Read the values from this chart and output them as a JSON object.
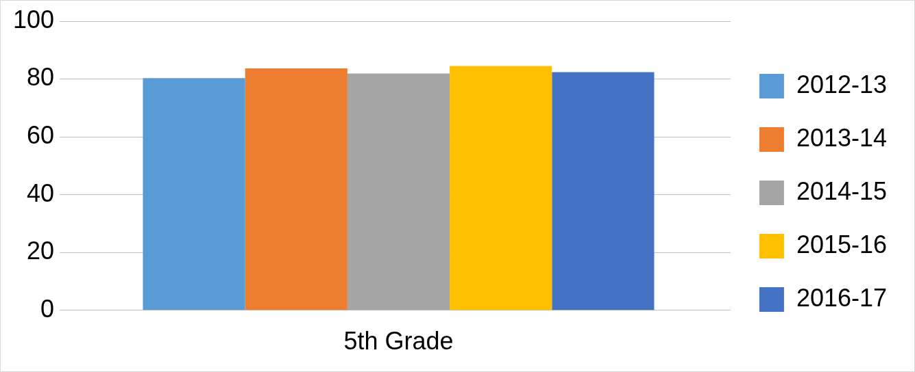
{
  "chart_data": {
    "type": "bar",
    "categories": [
      "5th Grade"
    ],
    "series": [
      {
        "name": "2012-13",
        "color": "#5b9bd5",
        "values": [
          80.3
        ]
      },
      {
        "name": "2013-14",
        "color": "#ed7d31",
        "values": [
          83.7
        ]
      },
      {
        "name": "2014-15",
        "color": "#a5a5a5",
        "values": [
          81.9
        ]
      },
      {
        "name": "2015-16",
        "color": "#ffc000",
        "values": [
          84.5
        ]
      },
      {
        "name": "2016-17",
        "color": "#4472c4",
        "values": [
          82.4
        ]
      }
    ],
    "ylim": [
      0,
      100
    ],
    "yticks": [
      0,
      20,
      40,
      60,
      80,
      100
    ],
    "grid": "y",
    "legend": "right"
  }
}
